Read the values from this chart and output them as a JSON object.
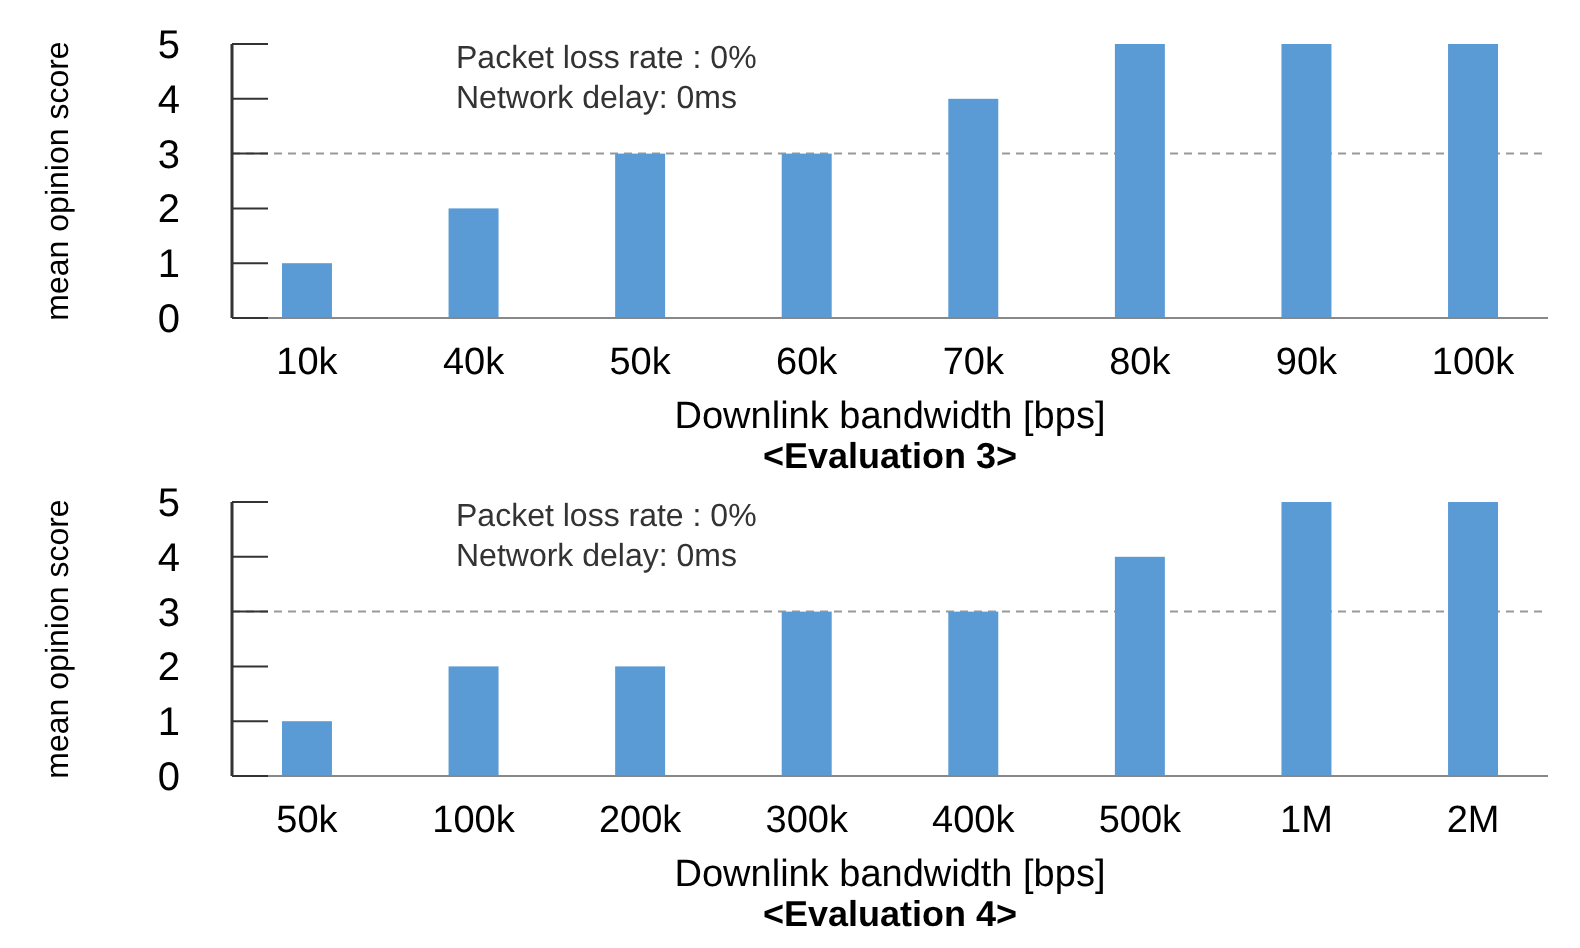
{
  "chart_data": [
    {
      "type": "bar",
      "title": "<Evaluation 3>",
      "xlabel": "Downlink bandwidth [bps]",
      "ylabel": "mean opinion score",
      "categories": [
        "10k",
        "40k",
        "50k",
        "60k",
        "70k",
        "80k",
        "90k",
        "100k"
      ],
      "values": [
        1,
        2,
        3,
        3,
        4,
        5,
        5,
        5
      ],
      "color": "#5b9bd5",
      "ylim": [
        0,
        5
      ],
      "yticks": [
        0,
        1,
        2,
        3,
        4,
        5
      ],
      "annotations": [
        "Packet loss rate : 0%",
        "Network delay: 0ms"
      ],
      "ref_lines": [
        {
          "axis": "y",
          "value": 3,
          "color": "#999999",
          "line_style": "dashed"
        }
      ]
    },
    {
      "type": "bar",
      "title": "<Evaluation 4>",
      "xlabel": "Downlink bandwidth [bps]",
      "ylabel": "mean opinion score",
      "categories": [
        "50k",
        "100k",
        "200k",
        "300k",
        "400k",
        "500k",
        "1M",
        "2M"
      ],
      "values": [
        1,
        2,
        2,
        3,
        3,
        4,
        5,
        5
      ],
      "color": "#5b9bd5",
      "ylim": [
        0,
        5
      ],
      "yticks": [
        0,
        1,
        2,
        3,
        4,
        5
      ],
      "annotations": [
        "Packet loss rate : 0%",
        "Network delay: 0ms"
      ],
      "ref_lines": [
        {
          "axis": "y",
          "value": 3,
          "color": "#999999",
          "line_style": "dashed"
        }
      ]
    }
  ]
}
